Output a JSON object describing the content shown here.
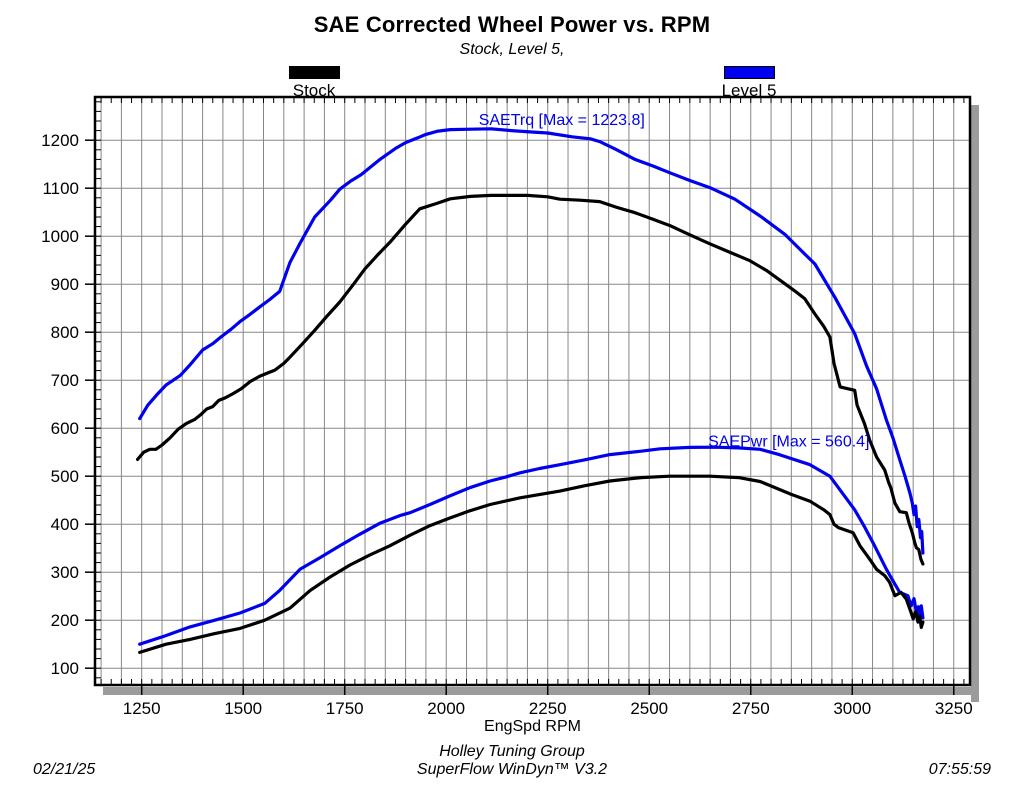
{
  "header": {
    "title": "SAE Corrected Wheel Power vs. RPM",
    "subtitle": "Stock, Level 5,"
  },
  "legend": {
    "items": [
      {
        "label": "Stock",
        "color": "#000000"
      },
      {
        "label": "Level 5",
        "color": "#0000ee"
      }
    ]
  },
  "footer": {
    "line1": "Holley Tuning Group",
    "line2": "SuperFlow WinDyn™ V3.2",
    "date": "02/21/25",
    "time": "07:55:59"
  },
  "chart_data": {
    "type": "line",
    "title": "SAE Corrected Wheel Power vs. RPM",
    "subtitle": "Stock, Level 5,",
    "xlabel": "EngSpd RPM",
    "ylabel": "",
    "xlim": [
      1135,
      3290
    ],
    "ylim": [
      65,
      1290
    ],
    "x_ticks": [
      1250,
      1500,
      1750,
      2000,
      2250,
      2500,
      2750,
      3000,
      3250
    ],
    "y_ticks": [
      100,
      200,
      300,
      400,
      500,
      600,
      700,
      800,
      900,
      1000,
      1100,
      1200
    ],
    "grid": {
      "on": true,
      "x_gridline_step": 50,
      "y_gridline_step": 100,
      "x_minor_tick_step": 25,
      "y_minor_tick_step": 20,
      "gridline_color": "#878787",
      "frame_color": "#000000",
      "shadow_color": "#9b9b9b"
    },
    "legend_position": "top",
    "annotations": [
      {
        "text": "SAETrq [Max = 1223.8]",
        "x": 2080,
        "y": 1232,
        "color": "#0000ee"
      },
      {
        "text": "SAEPwr [Max = 560.4]",
        "x": 2645,
        "y": 562,
        "color": "#0000ee"
      }
    ],
    "series": [
      {
        "name": "Level 5 SAETrq",
        "run": "Level 5",
        "channel": "SAETrq",
        "max": 1223.8,
        "color": "#0000ee",
        "points": [
          [
            1245,
            620
          ],
          [
            1265,
            648
          ],
          [
            1290,
            672
          ],
          [
            1310,
            690
          ],
          [
            1345,
            710
          ],
          [
            1370,
            733
          ],
          [
            1400,
            763
          ],
          [
            1425,
            776
          ],
          [
            1445,
            790
          ],
          [
            1470,
            806
          ],
          [
            1492,
            822
          ],
          [
            1515,
            836
          ],
          [
            1540,
            852
          ],
          [
            1565,
            868
          ],
          [
            1590,
            885
          ],
          [
            1615,
            945
          ],
          [
            1640,
            985
          ],
          [
            1676,
            1040
          ],
          [
            1715,
            1075
          ],
          [
            1738,
            1098
          ],
          [
            1765,
            1115
          ],
          [
            1790,
            1128
          ],
          [
            1837,
            1160
          ],
          [
            1875,
            1183
          ],
          [
            1900,
            1195
          ],
          [
            1930,
            1205
          ],
          [
            1950,
            1212
          ],
          [
            1980,
            1219
          ],
          [
            2010,
            1222
          ],
          [
            2060,
            1223
          ],
          [
            2110,
            1223.8
          ],
          [
            2160,
            1220
          ],
          [
            2210,
            1217
          ],
          [
            2250,
            1215
          ],
          [
            2310,
            1207
          ],
          [
            2355,
            1203
          ],
          [
            2378,
            1197
          ],
          [
            2420,
            1180
          ],
          [
            2465,
            1160
          ],
          [
            2510,
            1146
          ],
          [
            2551,
            1132
          ],
          [
            2600,
            1116
          ],
          [
            2650,
            1101
          ],
          [
            2711,
            1077
          ],
          [
            2773,
            1042
          ],
          [
            2834,
            1004
          ],
          [
            2883,
            963
          ],
          [
            2908,
            942
          ],
          [
            2957,
            873
          ],
          [
            3006,
            797
          ],
          [
            3035,
            730
          ],
          [
            3060,
            682
          ],
          [
            3084,
            617
          ],
          [
            3100,
            580
          ],
          [
            3117,
            534
          ],
          [
            3130,
            500
          ],
          [
            3142,
            465
          ],
          [
            3148,
            444
          ],
          [
            3152,
            420
          ],
          [
            3156,
            438
          ],
          [
            3160,
            395
          ],
          [
            3164,
            410
          ],
          [
            3168,
            372
          ],
          [
            3171,
            385
          ],
          [
            3174,
            340
          ]
        ]
      },
      {
        "name": "Stock SAETrq",
        "run": "Stock",
        "channel": "SAETrq",
        "max": 1085,
        "color": "#000000",
        "points": [
          [
            1240,
            535
          ],
          [
            1255,
            550
          ],
          [
            1270,
            556
          ],
          [
            1285,
            556
          ],
          [
            1300,
            565
          ],
          [
            1320,
            580
          ],
          [
            1340,
            598
          ],
          [
            1360,
            610
          ],
          [
            1380,
            618
          ],
          [
            1395,
            628
          ],
          [
            1410,
            640
          ],
          [
            1425,
            645
          ],
          [
            1440,
            658
          ],
          [
            1455,
            663
          ],
          [
            1475,
            672
          ],
          [
            1495,
            682
          ],
          [
            1517,
            697
          ],
          [
            1540,
            708
          ],
          [
            1560,
            715
          ],
          [
            1578,
            721
          ],
          [
            1600,
            735
          ],
          [
            1615,
            748
          ],
          [
            1645,
            775
          ],
          [
            1676,
            804
          ],
          [
            1705,
            832
          ],
          [
            1738,
            863
          ],
          [
            1770,
            898
          ],
          [
            1800,
            932
          ],
          [
            1830,
            960
          ],
          [
            1861,
            987
          ],
          [
            1900,
            1025
          ],
          [
            1935,
            1057
          ],
          [
            1975,
            1068
          ],
          [
            2010,
            1078
          ],
          [
            2060,
            1083
          ],
          [
            2110,
            1085
          ],
          [
            2200,
            1085
          ],
          [
            2250,
            1082
          ],
          [
            2280,
            1077
          ],
          [
            2330,
            1075
          ],
          [
            2378,
            1072
          ],
          [
            2420,
            1060
          ],
          [
            2465,
            1049
          ],
          [
            2510,
            1035
          ],
          [
            2551,
            1022
          ],
          [
            2600,
            1003
          ],
          [
            2650,
            984
          ],
          [
            2700,
            966
          ],
          [
            2748,
            949
          ],
          [
            2790,
            928
          ],
          [
            2834,
            901
          ],
          [
            2860,
            885
          ],
          [
            2883,
            870
          ],
          [
            2908,
            838
          ],
          [
            2930,
            812
          ],
          [
            2945,
            790
          ],
          [
            2955,
            735
          ],
          [
            2970,
            686
          ],
          [
            2990,
            682
          ],
          [
            3006,
            679
          ],
          [
            3012,
            648
          ],
          [
            3030,
            610
          ],
          [
            3043,
            575
          ],
          [
            3060,
            540
          ],
          [
            3080,
            513
          ],
          [
            3090,
            486
          ],
          [
            3095,
            476
          ],
          [
            3105,
            444
          ],
          [
            3117,
            426
          ],
          [
            3133,
            424
          ],
          [
            3140,
            402
          ],
          [
            3148,
            382
          ],
          [
            3154,
            361
          ],
          [
            3158,
            351
          ],
          [
            3164,
            347
          ],
          [
            3169,
            327
          ],
          [
            3174,
            317
          ]
        ]
      },
      {
        "name": "Level 5 SAEPwr",
        "run": "Level 5",
        "channel": "SAEPwr",
        "max": 560.4,
        "color": "#0000ee",
        "points": [
          [
            1245,
            150
          ],
          [
            1307,
            167
          ],
          [
            1369,
            186
          ],
          [
            1430,
            200
          ],
          [
            1492,
            215
          ],
          [
            1553,
            235
          ],
          [
            1590,
            262
          ],
          [
            1640,
            306
          ],
          [
            1689,
            330
          ],
          [
            1738,
            355
          ],
          [
            1787,
            379
          ],
          [
            1837,
            402
          ],
          [
            1886,
            418
          ],
          [
            1911,
            424
          ],
          [
            1960,
            441
          ],
          [
            2009,
            459
          ],
          [
            2058,
            476
          ],
          [
            2108,
            490
          ],
          [
            2145,
            498
          ],
          [
            2182,
            507
          ],
          [
            2230,
            516
          ],
          [
            2280,
            524
          ],
          [
            2340,
            534
          ],
          [
            2403,
            545
          ],
          [
            2480,
            552
          ],
          [
            2527,
            557
          ],
          [
            2600,
            560
          ],
          [
            2660,
            560.4
          ],
          [
            2720,
            559
          ],
          [
            2773,
            556
          ],
          [
            2820,
            545
          ],
          [
            2896,
            524
          ],
          [
            2945,
            500
          ],
          [
            2980,
            460
          ],
          [
            3006,
            430
          ],
          [
            3030,
            395
          ],
          [
            3055,
            355
          ],
          [
            3084,
            306
          ],
          [
            3105,
            275
          ],
          [
            3117,
            258
          ],
          [
            3137,
            251
          ],
          [
            3145,
            230
          ],
          [
            3152,
            245
          ],
          [
            3158,
            216
          ],
          [
            3163,
            228
          ],
          [
            3166,
            203
          ],
          [
            3170,
            230
          ],
          [
            3174,
            205
          ]
        ]
      },
      {
        "name": "Stock SAEPwr",
        "run": "Stock",
        "channel": "SAEPwr",
        "max": 500,
        "color": "#000000",
        "points": [
          [
            1245,
            133
          ],
          [
            1310,
            150
          ],
          [
            1369,
            160
          ],
          [
            1430,
            172
          ],
          [
            1492,
            183
          ],
          [
            1553,
            200
          ],
          [
            1615,
            225
          ],
          [
            1665,
            262
          ],
          [
            1714,
            290
          ],
          [
            1763,
            315
          ],
          [
            1812,
            336
          ],
          [
            1861,
            355
          ],
          [
            1911,
            377
          ],
          [
            1960,
            397
          ],
          [
            2009,
            413
          ],
          [
            2058,
            428
          ],
          [
            2108,
            441
          ],
          [
            2182,
            455
          ],
          [
            2280,
            469
          ],
          [
            2340,
            480
          ],
          [
            2403,
            490
          ],
          [
            2480,
            497
          ],
          [
            2550,
            500
          ],
          [
            2650,
            500
          ],
          [
            2720,
            497
          ],
          [
            2773,
            489
          ],
          [
            2850,
            462
          ],
          [
            2896,
            448
          ],
          [
            2930,
            430
          ],
          [
            2945,
            420
          ],
          [
            2955,
            400
          ],
          [
            2966,
            393
          ],
          [
            3002,
            382
          ],
          [
            3019,
            355
          ],
          [
            3043,
            327
          ],
          [
            3060,
            306
          ],
          [
            3080,
            293
          ],
          [
            3092,
            279
          ],
          [
            3105,
            251
          ],
          [
            3120,
            258
          ],
          [
            3133,
            244
          ],
          [
            3142,
            223
          ],
          [
            3150,
            203
          ],
          [
            3156,
            218
          ],
          [
            3162,
            196
          ],
          [
            3166,
            208
          ],
          [
            3170,
            185
          ],
          [
            3174,
            196
          ]
        ]
      }
    ]
  }
}
